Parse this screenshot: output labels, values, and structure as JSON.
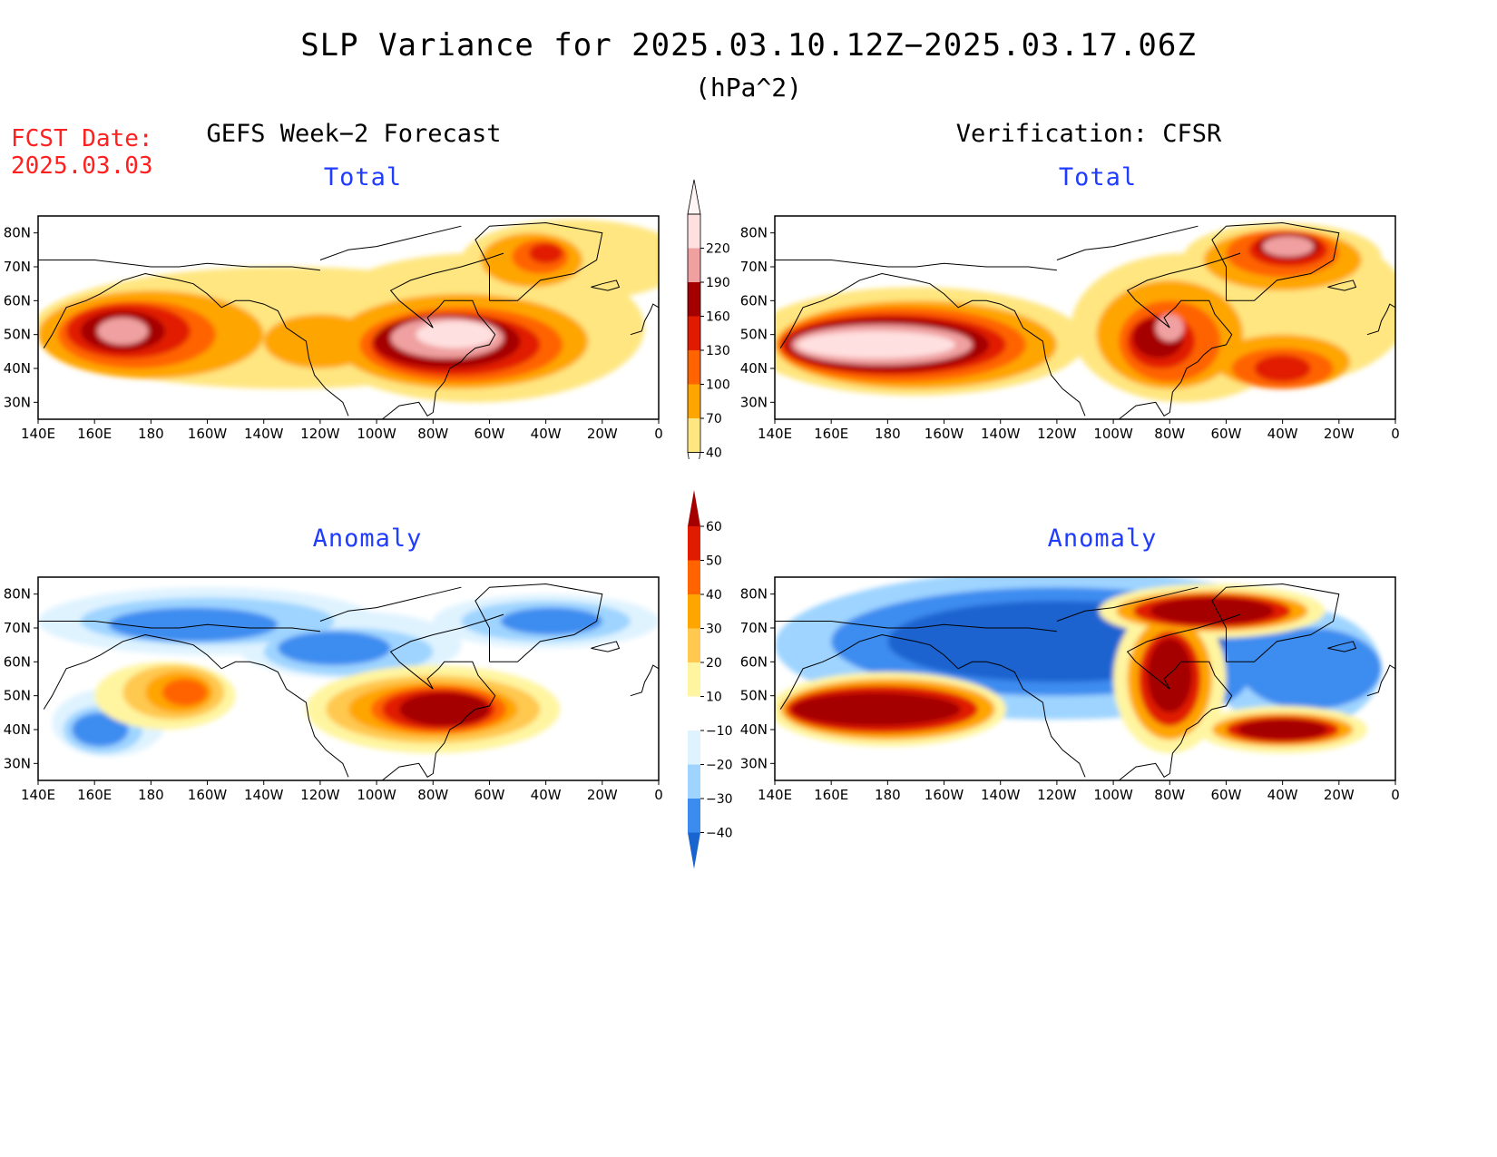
{
  "title": "SLP Variance for 2025.03.10.12Z−2025.03.17.06Z",
  "units": "(hPa^2)",
  "fcst_label": "FCST Date:",
  "fcst_date": "2025.03.03",
  "left_header": "GEFS Week−2 Forecast",
  "right_header": "Verification: CFSR",
  "panels": {
    "tl_title": "Total",
    "tr_title": "Total",
    "bl_title": "Anomaly",
    "br_title": "Anomaly"
  },
  "axes": {
    "lat_labels": [
      "80N",
      "70N",
      "60N",
      "50N",
      "40N",
      "30N"
    ],
    "lon_labels": [
      "140E",
      "160E",
      "180",
      "160W",
      "140W",
      "120W",
      "100W",
      "80W",
      "60W",
      "40W",
      "20W",
      "0"
    ]
  },
  "colorbars": {
    "total": {
      "levels": [
        "40",
        "70",
        "100",
        "130",
        "160",
        "190",
        "220"
      ],
      "colors": [
        "#ffe680",
        "#ffa500",
        "#ff6400",
        "#e11b00",
        "#a50000",
        "#f0a0a0",
        "#ffe0e0",
        "#fff5f5"
      ]
    },
    "anomaly": {
      "levels": [
        "60",
        "50",
        "40",
        "30",
        "20",
        "10",
        "−10",
        "−20",
        "−30",
        "−40"
      ],
      "colors": [
        "#a50000",
        "#e11b00",
        "#ff6400",
        "#ffa500",
        "#ffc850",
        "#fff5a0",
        "#ffffff",
        "#dff3ff",
        "#9ed4ff",
        "#3c8cf0",
        "#1a64d0"
      ]
    }
  },
  "chart_data": {
    "type": "heatmap",
    "title": "SLP Variance for 2025.03.10.12Z−2025.03.17.06Z",
    "units": "(hPa^2)",
    "lon_range": [
      "140E",
      "0"
    ],
    "lat_range": [
      "25N",
      "85N"
    ]
  }
}
